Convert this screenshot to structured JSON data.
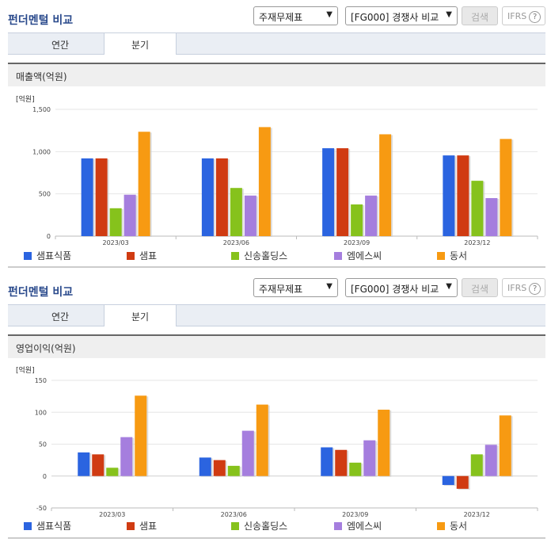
{
  "colors": {
    "s1": "#2b64e0",
    "s2": "#d03b12",
    "s3": "#86c21c",
    "s4": "#a57ede",
    "s5": "#f79a12"
  },
  "sections": [
    {
      "title": "펀더멘털 비교",
      "select_statement": "주재무제표",
      "select_compare": "[FG000] 경쟁사 비교",
      "search_label": "검색",
      "ifrs_label": "IFRS",
      "help_glyph": "?",
      "tabs": [
        "연간",
        "분기"
      ],
      "active_tab": 1,
      "subhead": "매출액(억원)"
    },
    {
      "title": "펀더멘털 비교",
      "select_statement": "주재무제표",
      "select_compare": "[FG000] 경쟁사 비교",
      "search_label": "검색",
      "ifrs_label": "IFRS",
      "help_glyph": "?",
      "tabs": [
        "연간",
        "분기"
      ],
      "active_tab": 1,
      "subhead": "영업이익(억원)"
    }
  ],
  "chart_data": [
    {
      "type": "bar",
      "unit_label": "[억원]",
      "categories": [
        "2023/03",
        "2023/06",
        "2023/09",
        "2023/12"
      ],
      "ylim": [
        0,
        1500
      ],
      "yticks": [
        "0",
        "500",
        "1,000",
        "1,500"
      ],
      "ytick_values": [
        0,
        500,
        1000,
        1500
      ],
      "grid": true,
      "legend": "bottom",
      "series": [
        {
          "name": "샘표식품",
          "values": [
            920,
            920,
            1040,
            955
          ]
        },
        {
          "name": "샘표",
          "values": [
            920,
            920,
            1040,
            955
          ]
        },
        {
          "name": "신송홀딩스",
          "values": [
            330,
            570,
            375,
            655
          ]
        },
        {
          "name": "엠에스씨",
          "values": [
            490,
            480,
            480,
            450
          ]
        },
        {
          "name": "동서",
          "values": [
            1235,
            1290,
            1205,
            1150
          ]
        }
      ]
    },
    {
      "type": "bar",
      "unit_label": "[억원]",
      "categories": [
        "2023/03",
        "2023/06",
        "2023/09",
        "2023/12"
      ],
      "ylim": [
        -50,
        150
      ],
      "yticks": [
        "-50",
        "0",
        "50",
        "100",
        "150"
      ],
      "ytick_values": [
        -50,
        0,
        50,
        100,
        150
      ],
      "grid": true,
      "legend": "bottom",
      "series": [
        {
          "name": "샘표식품",
          "values": [
            37,
            29,
            45,
            -14
          ]
        },
        {
          "name": "샘표",
          "values": [
            34,
            25,
            41,
            -20
          ]
        },
        {
          "name": "신송홀딩스",
          "values": [
            13,
            16,
            21,
            34
          ]
        },
        {
          "name": "엠에스씨",
          "values": [
            61,
            71,
            56,
            49
          ]
        },
        {
          "name": "동서",
          "values": [
            126,
            112,
            104,
            95
          ]
        }
      ]
    }
  ]
}
